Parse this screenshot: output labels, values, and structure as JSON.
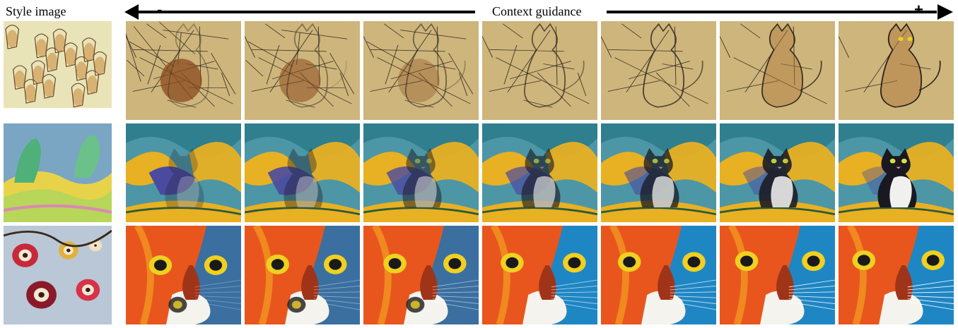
{
  "header": {
    "style_label": "Style image",
    "guidance_label": "Context guidance",
    "minus": "-",
    "plus": "+"
  },
  "rows": [
    {
      "style": "sketch-figures",
      "palette": {
        "bg": "#c9b277",
        "ink": "#2a2118",
        "accent": "#8a4a1f",
        "light": "#e3d7b0"
      },
      "cells": [
        "cat-sketch-1",
        "cat-sketch-2",
        "cat-sketch-3",
        "cat-sketch-4",
        "cat-sketch-5",
        "cat-sketch-6",
        "cat-sketch-7"
      ]
    },
    {
      "style": "fauvist-landscape",
      "palette": {
        "bg": "#4d96a6",
        "ink": "#1a1820",
        "accent": "#e8b023",
        "light": "#f0f0ee"
      },
      "cells": [
        "cat-paint-1",
        "cat-paint-2",
        "cat-paint-3",
        "cat-paint-4",
        "cat-paint-5",
        "cat-paint-6",
        "cat-paint-7"
      ]
    },
    {
      "style": "abstract-flowers",
      "palette": {
        "bg": "#d64a1c",
        "ink": "#1a1a1a",
        "accent": "#f0d020",
        "light": "#3a8fc0"
      },
      "cells": [
        "cat-face-1",
        "cat-face-2",
        "cat-face-3",
        "cat-face-4",
        "cat-face-5",
        "cat-face-6",
        "cat-face-7"
      ]
    }
  ]
}
